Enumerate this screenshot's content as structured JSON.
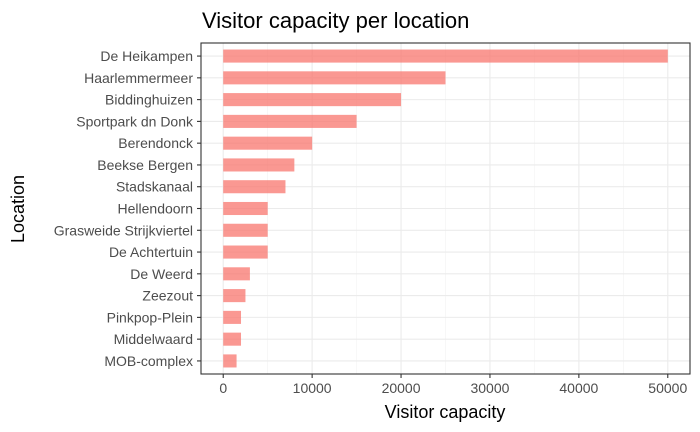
{
  "chart_data": {
    "type": "bar",
    "orientation": "horizontal",
    "title": "Visitor capacity per location",
    "xlabel": "Visitor capacity",
    "ylabel": "Location",
    "categories": [
      "De Heikampen",
      "Haarlemmermeer",
      "Biddinghuizen",
      "Sportpark dn Donk",
      "Berendonck",
      "Beekse Bergen",
      "Stadskanaal",
      "Hellendoorn",
      "Grasweide Strijkviertel",
      "De Achtertuin",
      "De Weerd",
      "Zeezout",
      "Pinkpop-Plein",
      "Middelwaard",
      "MOB-complex"
    ],
    "values": [
      50000,
      25000,
      20000,
      15000,
      10000,
      8000,
      7000,
      5000,
      5000,
      5000,
      3000,
      2500,
      2000,
      2000,
      1500
    ],
    "xlim": [
      -2500,
      52500
    ],
    "xticks": [
      0,
      10000,
      20000,
      30000,
      40000,
      50000
    ],
    "bar_color": "#f8766d",
    "grid": true,
    "legend": "none"
  }
}
